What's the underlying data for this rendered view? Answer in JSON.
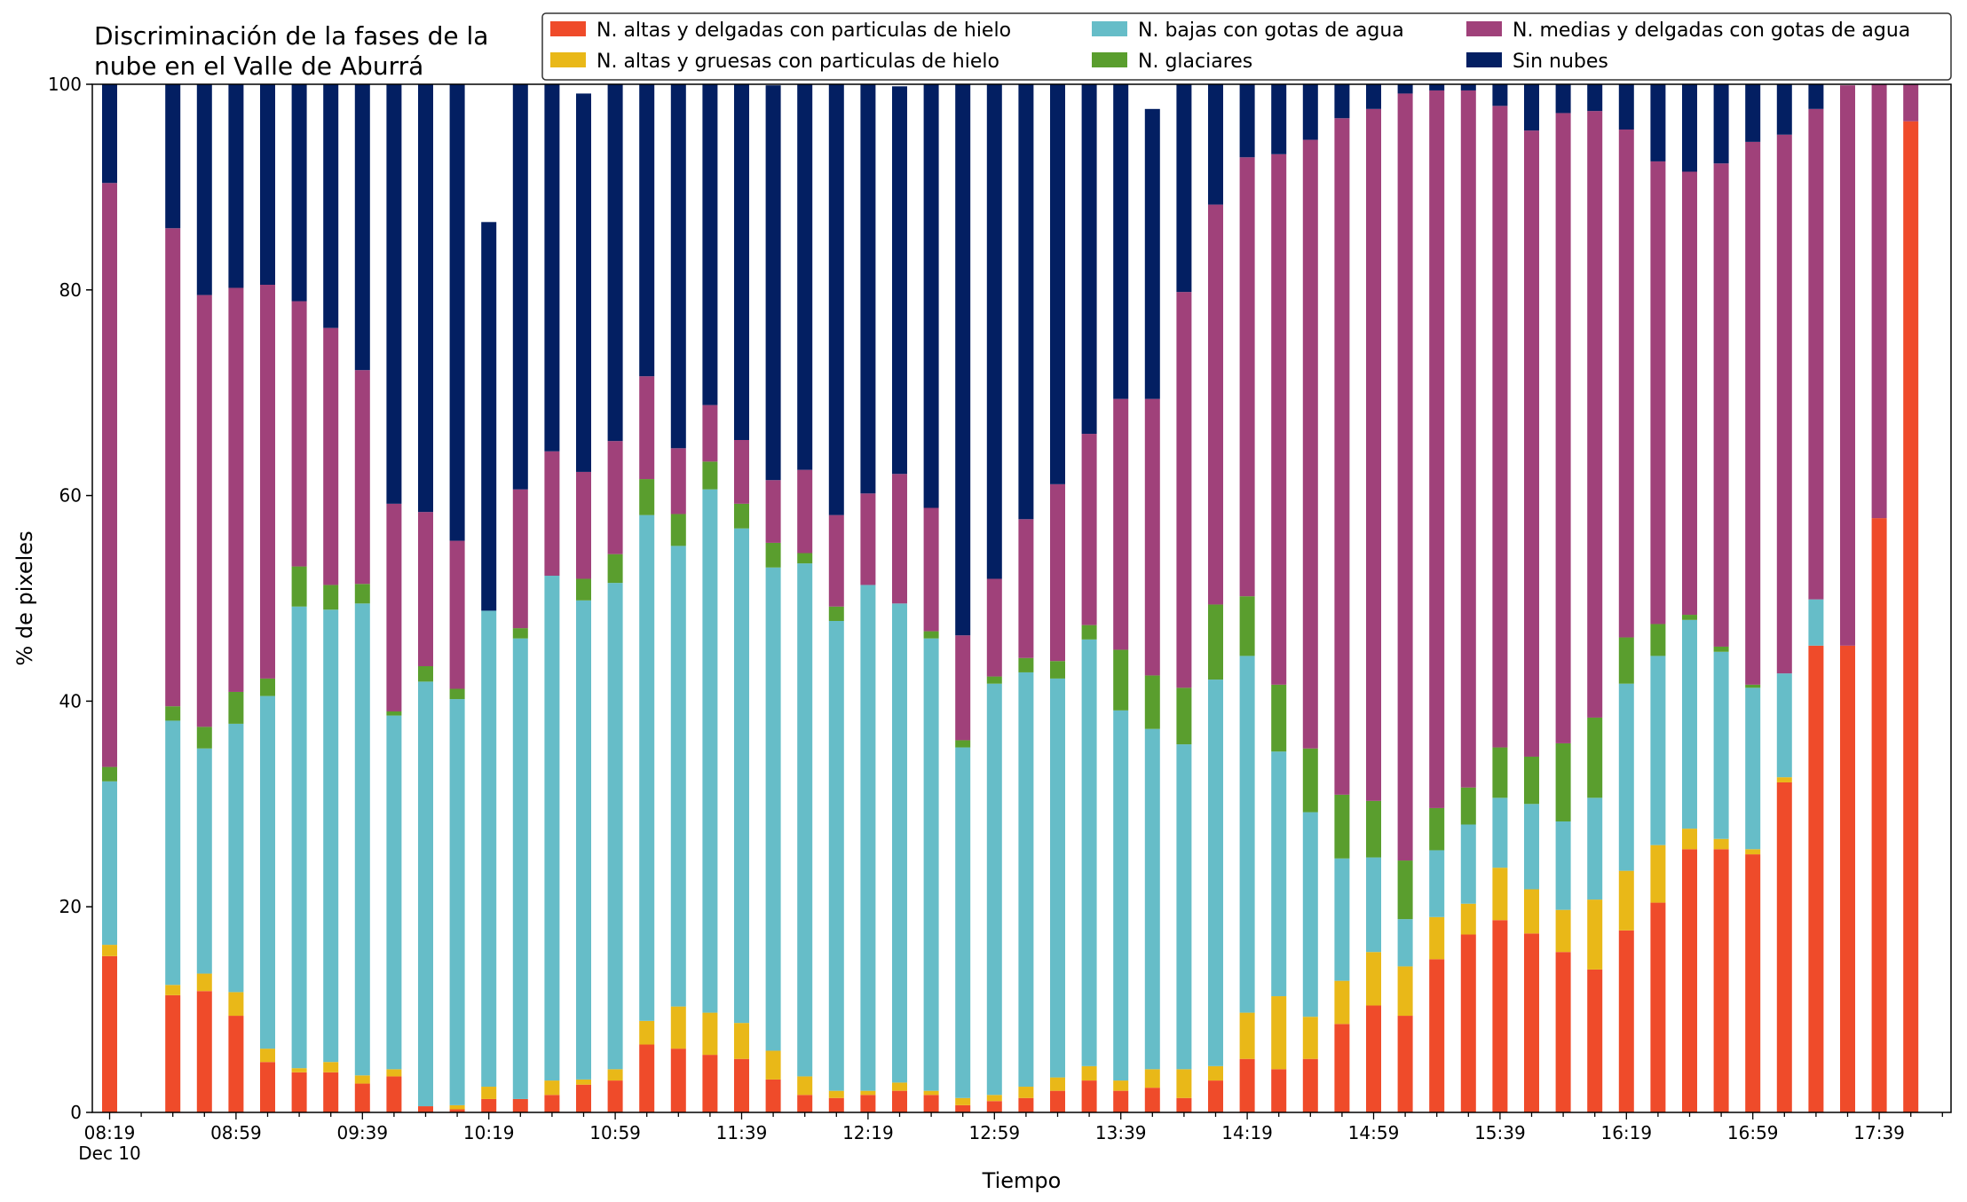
{
  "chart_data": {
    "type": "bar",
    "stacked": true,
    "title_lines": [
      "Discriminación de la fases de la",
      "nube en el Valle de Aburrá"
    ],
    "xlabel": "Tiempo",
    "ylabel": "% de pixeles",
    "ylim": [
      0,
      100
    ],
    "yticks": [
      0,
      20,
      40,
      60,
      80,
      100
    ],
    "xtick_labels": [
      "08:19",
      "08:59",
      "09:39",
      "10:19",
      "10:59",
      "11:39",
      "12:19",
      "12:59",
      "13:39",
      "14:19",
      "14:59",
      "15:39",
      "16:19",
      "16:59",
      "17:39"
    ],
    "xtick_date_label": "Dec 10",
    "interval_minutes": 10,
    "legend_position": "top-right",
    "grid": false,
    "categories": [
      "08:19",
      "08:29",
      "08:39",
      "08:49",
      "08:59",
      "09:09",
      "09:19",
      "09:29",
      "09:39",
      "09:49",
      "09:59",
      "10:09",
      "10:19",
      "10:29",
      "10:39",
      "10:49",
      "10:59",
      "11:09",
      "11:19",
      "11:29",
      "11:39",
      "11:49",
      "11:59",
      "12:09",
      "12:19",
      "12:29",
      "12:39",
      "12:49",
      "12:59",
      "13:09",
      "13:19",
      "13:29",
      "13:39",
      "13:49",
      "13:59",
      "14:09",
      "14:19",
      "14:29",
      "14:39",
      "14:49",
      "14:59",
      "15:09",
      "15:19",
      "15:29",
      "15:39",
      "15:49",
      "15:59",
      "16:09",
      "16:19",
      "16:29",
      "16:39",
      "16:49",
      "16:59",
      "17:09",
      "17:19",
      "17:29",
      "17:39",
      "17:49"
    ],
    "series": [
      {
        "name": "N. altas y delgadas con particulas de hielo",
        "color": "#ef4b2a",
        "values": [
          15.2,
          null,
          11.4,
          11.8,
          9.4,
          4.9,
          3.9,
          3.9,
          2.8,
          3.5,
          0.6,
          0.3,
          1.3,
          1.3,
          1.7,
          2.7,
          3.1,
          6.6,
          6.2,
          5.6,
          5.2,
          3.2,
          1.7,
          1.4,
          1.7,
          2.1,
          1.7,
          0.7,
          1.1,
          1.4,
          2.1,
          3.1,
          2.1,
          2.4,
          1.4,
          3.1,
          5.2,
          4.2,
          5.2,
          8.6,
          10.4,
          9.4,
          14.9,
          17.3,
          18.7,
          17.4,
          15.6,
          13.9,
          17.7,
          20.4,
          25.6,
          25.6,
          25.1,
          32.1,
          45.4,
          45.4,
          57.8,
          96.4
        ]
      },
      {
        "name": "N. altas y gruesas con particulas de hielo",
        "color": "#e9b818",
        "values": [
          1.1,
          null,
          1.0,
          1.7,
          2.3,
          1.3,
          0.4,
          1.0,
          0.8,
          0.7,
          0,
          0.4,
          1.2,
          0,
          1.4,
          0.5,
          1.1,
          2.3,
          4.1,
          4.1,
          3.5,
          2.8,
          1.8,
          0.7,
          0.4,
          0.8,
          0.4,
          0.7,
          0.6,
          1.1,
          1.3,
          1.4,
          1.0,
          1.8,
          2.8,
          1.4,
          4.5,
          7.1,
          4.1,
          4.2,
          5.2,
          4.8,
          4.1,
          3.0,
          5.1,
          4.3,
          4.1,
          6.8,
          5.8,
          5.6,
          2.0,
          1.0,
          0.5,
          0.5,
          0,
          0,
          0,
          0
        ]
      },
      {
        "name": "N. bajas con gotas de agua",
        "color": "#66bdc8",
        "values": [
          15.9,
          null,
          25.7,
          21.9,
          26.1,
          34.3,
          44.9,
          44.0,
          45.9,
          34.4,
          41.3,
          39.5,
          46.3,
          44.8,
          49.1,
          46.6,
          47.3,
          49.2,
          44.8,
          50.9,
          48.1,
          47.0,
          49.9,
          45.7,
          49.2,
          46.6,
          44.0,
          34.1,
          40.0,
          40.3,
          38.8,
          41.5,
          36.0,
          33.1,
          31.6,
          37.6,
          34.7,
          23.8,
          19.9,
          11.9,
          9.2,
          4.6,
          6.5,
          7.7,
          6.8,
          8.3,
          8.6,
          9.9,
          18.2,
          18.4,
          20.3,
          18.2,
          15.7,
          10.1,
          4.5,
          0,
          0,
          0
        ]
      },
      {
        "name": "N. glaciares",
        "color": "#5a9e2e",
        "values": [
          1.4,
          null,
          1.4,
          2.1,
          3.1,
          1.7,
          3.9,
          2.4,
          1.9,
          0.4,
          1.5,
          1.0,
          0,
          1.0,
          0,
          2.1,
          2.8,
          3.5,
          3.1,
          2.7,
          2.4,
          2.4,
          1.0,
          1.4,
          0,
          0,
          0.7,
          0.7,
          0.7,
          1.4,
          1.7,
          1.4,
          5.9,
          5.2,
          5.5,
          7.3,
          5.8,
          6.5,
          6.2,
          6.2,
          5.5,
          5.7,
          4.1,
          3.6,
          4.9,
          4.6,
          7.6,
          7.8,
          4.5,
          3.1,
          0.5,
          0.5,
          0.3,
          0,
          0,
          0,
          0,
          0
        ]
      },
      {
        "name": "N. medias y delgadas con gotas de agua",
        "color": "#a0417a",
        "values": [
          56.8,
          null,
          46.5,
          42.0,
          39.3,
          38.3,
          25.8,
          25.0,
          20.8,
          20.2,
          15.0,
          14.4,
          0,
          13.5,
          12.1,
          10.4,
          11.0,
          10.0,
          6.4,
          5.5,
          6.2,
          6.1,
          8.1,
          8.9,
          8.9,
          12.6,
          12.0,
          10.2,
          9.5,
          13.5,
          17.2,
          18.6,
          24.4,
          26.9,
          38.5,
          38.9,
          42.7,
          51.6,
          59.2,
          65.8,
          67.3,
          74.6,
          69.8,
          67.8,
          62.4,
          60.9,
          61.3,
          59.0,
          49.4,
          45.0,
          43.1,
          47.0,
          52.8,
          52.4,
          47.7,
          54.5,
          42.2,
          3.6
        ]
      },
      {
        "name": "Sin nubes",
        "color": "#031f62",
        "values": [
          9.6,
          null,
          14.0,
          20.5,
          19.8,
          19.5,
          21.1,
          23.7,
          27.8,
          40.8,
          41.6,
          44.4,
          37.8,
          40.9,
          37.1,
          36.8,
          35.8,
          31.9,
          36.4,
          31.2,
          34.6,
          38.4,
          37.5,
          42.3,
          39.8,
          37.7,
          41.2,
          53.6,
          48.1,
          42.3,
          38.9,
          34.0,
          30.6,
          28.2,
          20.2,
          11.7,
          7.1,
          6.8,
          5.4,
          3.4,
          2.4,
          0.9,
          0.6,
          0.6,
          2.1,
          4.5,
          2.8,
          2.6,
          4.4,
          7.5,
          8.5,
          7.7,
          5.6,
          4.9,
          2.4,
          0,
          0,
          0
        ]
      }
    ]
  }
}
